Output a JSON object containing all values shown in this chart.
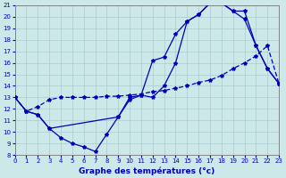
{
  "title": "Graphe des températures (°c)",
  "bg_color": "#cce8e8",
  "line_color": "#0000bb",
  "xlim": [
    0,
    23
  ],
  "ylim": [
    8,
    21
  ],
  "xticks": [
    0,
    1,
    2,
    3,
    4,
    5,
    6,
    7,
    8,
    9,
    10,
    11,
    12,
    13,
    14,
    15,
    16,
    17,
    18,
    19,
    20,
    21,
    22,
    23
  ],
  "yticks": [
    8,
    9,
    10,
    11,
    12,
    13,
    14,
    15,
    16,
    17,
    18,
    19,
    20,
    21
  ],
  "grid_color": "#aacccc",
  "curve_min_x": [
    0,
    1,
    2,
    3,
    4,
    5,
    6,
    7,
    8,
    9,
    10,
    11,
    12,
    13,
    14,
    15,
    16,
    17,
    18,
    19,
    20,
    21,
    22,
    23
  ],
  "curve_min_y": [
    13.0,
    11.8,
    11.5,
    10.3,
    9.5,
    9.0,
    8.7,
    8.3,
    9.8,
    11.3,
    12.8,
    13.2,
    13.0,
    14.0,
    16.0,
    19.6,
    20.2,
    21.2,
    21.2,
    20.5,
    19.8,
    17.5,
    15.5,
    14.2
  ],
  "curve_flat_x": [
    0,
    1,
    2,
    3,
    4,
    5,
    6,
    7,
    8,
    9,
    10,
    11,
    12,
    13,
    14,
    15,
    16,
    17,
    18,
    19,
    20,
    21,
    22,
    23
  ],
  "curve_flat_y": [
    13.0,
    11.8,
    12.2,
    12.8,
    13.0,
    13.0,
    13.0,
    13.0,
    13.1,
    13.1,
    13.2,
    13.3,
    13.5,
    13.6,
    13.8,
    14.0,
    14.3,
    14.5,
    14.9,
    15.5,
    16.0,
    16.6,
    17.5,
    14.2
  ],
  "curve_max_x": [
    0,
    1,
    2,
    3,
    9,
    10,
    11,
    12,
    13,
    14,
    15,
    16,
    17,
    18,
    19,
    20,
    21,
    22,
    23
  ],
  "curve_max_y": [
    13.0,
    11.8,
    11.5,
    10.3,
    11.3,
    13.0,
    13.2,
    16.2,
    16.5,
    18.5,
    19.6,
    20.2,
    21.2,
    21.2,
    20.5,
    20.5,
    17.5,
    15.5,
    14.2
  ]
}
